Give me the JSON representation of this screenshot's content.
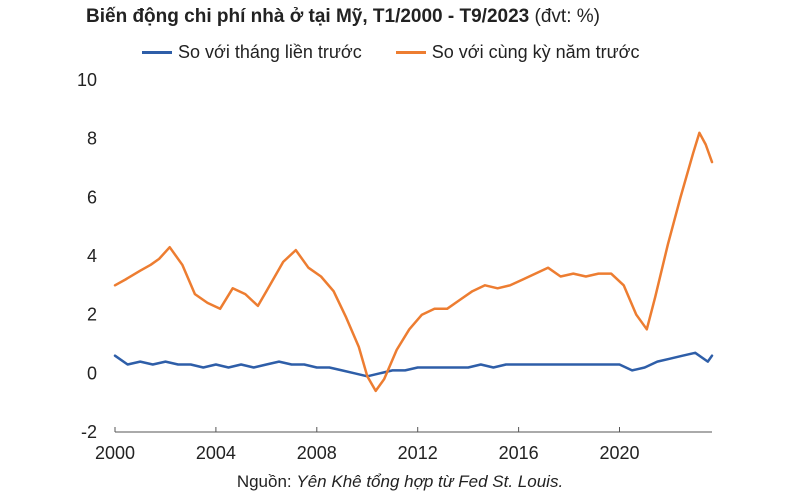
{
  "title": "Biến động chi phí nhà ở tại Mỹ, T1/2000 - T9/2023",
  "title_unit": "(đvt: %)",
  "source_prefix": "Nguồn:",
  "source_text": "Yên Khê tổng hợp từ Fed St. Louis.",
  "colors": {
    "series_mom": "#2e5ea8",
    "series_yoy": "#ed7d31",
    "axis": "#555555"
  },
  "chart_data": {
    "type": "line",
    "title": "Biến động chi phí nhà ở tại Mỹ, T1/2000 - T9/2023 (đvt: %)",
    "xlabel": "",
    "ylabel": "",
    "xlim": [
      "2000-01",
      "2023-09"
    ],
    "ylim": [
      -2,
      10
    ],
    "x_ticks": [
      "2000",
      "2004",
      "2008",
      "2012",
      "2016",
      "2020"
    ],
    "y_ticks": [
      "-2",
      "0",
      "2",
      "4",
      "6",
      "8",
      "10"
    ],
    "grid": false,
    "legend": "top",
    "series": [
      {
        "name": "So với tháng liền trước",
        "color": "#2e5ea8",
        "points": [
          [
            "2000-01",
            0.6
          ],
          [
            "2000-07",
            0.3
          ],
          [
            "2001-01",
            0.4
          ],
          [
            "2001-07",
            0.3
          ],
          [
            "2002-01",
            0.4
          ],
          [
            "2002-07",
            0.3
          ],
          [
            "2003-01",
            0.3
          ],
          [
            "2003-07",
            0.2
          ],
          [
            "2004-01",
            0.3
          ],
          [
            "2004-07",
            0.2
          ],
          [
            "2005-01",
            0.3
          ],
          [
            "2005-07",
            0.2
          ],
          [
            "2006-01",
            0.3
          ],
          [
            "2006-07",
            0.4
          ],
          [
            "2007-01",
            0.3
          ],
          [
            "2007-07",
            0.3
          ],
          [
            "2008-01",
            0.2
          ],
          [
            "2008-07",
            0.2
          ],
          [
            "2009-01",
            0.1
          ],
          [
            "2009-07",
            0.0
          ],
          [
            "2010-01",
            -0.1
          ],
          [
            "2010-07",
            0.0
          ],
          [
            "2011-01",
            0.1
          ],
          [
            "2011-07",
            0.1
          ],
          [
            "2012-01",
            0.2
          ],
          [
            "2012-07",
            0.2
          ],
          [
            "2013-01",
            0.2
          ],
          [
            "2013-07",
            0.2
          ],
          [
            "2014-01",
            0.2
          ],
          [
            "2014-07",
            0.3
          ],
          [
            "2015-01",
            0.2
          ],
          [
            "2015-07",
            0.3
          ],
          [
            "2016-01",
            0.3
          ],
          [
            "2016-07",
            0.3
          ],
          [
            "2017-01",
            0.3
          ],
          [
            "2017-07",
            0.3
          ],
          [
            "2018-01",
            0.3
          ],
          [
            "2018-07",
            0.3
          ],
          [
            "2019-01",
            0.3
          ],
          [
            "2019-07",
            0.3
          ],
          [
            "2020-01",
            0.3
          ],
          [
            "2020-07",
            0.1
          ],
          [
            "2021-01",
            0.2
          ],
          [
            "2021-07",
            0.4
          ],
          [
            "2022-01",
            0.5
          ],
          [
            "2022-07",
            0.6
          ],
          [
            "2023-01",
            0.7
          ],
          [
            "2023-07",
            0.4
          ],
          [
            "2023-09",
            0.6
          ]
        ]
      },
      {
        "name": "So với cùng kỳ năm trước",
        "color": "#ed7d31",
        "points": [
          [
            "2000-01",
            3.0
          ],
          [
            "2000-06",
            3.2
          ],
          [
            "2001-01",
            3.5
          ],
          [
            "2001-06",
            3.7
          ],
          [
            "2001-10",
            3.9
          ],
          [
            "2002-03",
            4.3
          ],
          [
            "2002-09",
            3.7
          ],
          [
            "2003-03",
            2.7
          ],
          [
            "2003-09",
            2.4
          ],
          [
            "2004-03",
            2.2
          ],
          [
            "2004-09",
            2.9
          ],
          [
            "2005-03",
            2.7
          ],
          [
            "2005-09",
            2.3
          ],
          [
            "2006-01",
            2.8
          ],
          [
            "2006-09",
            3.8
          ],
          [
            "2007-03",
            4.2
          ],
          [
            "2007-09",
            3.6
          ],
          [
            "2008-03",
            3.3
          ],
          [
            "2008-09",
            2.8
          ],
          [
            "2009-03",
            1.9
          ],
          [
            "2009-09",
            0.9
          ],
          [
            "2010-01",
            -0.1
          ],
          [
            "2010-05",
            -0.6
          ],
          [
            "2010-09",
            -0.2
          ],
          [
            "2011-03",
            0.8
          ],
          [
            "2011-09",
            1.5
          ],
          [
            "2012-03",
            2.0
          ],
          [
            "2012-09",
            2.2
          ],
          [
            "2013-03",
            2.2
          ],
          [
            "2013-09",
            2.5
          ],
          [
            "2014-03",
            2.8
          ],
          [
            "2014-09",
            3.0
          ],
          [
            "2015-03",
            2.9
          ],
          [
            "2015-09",
            3.0
          ],
          [
            "2016-03",
            3.2
          ],
          [
            "2016-09",
            3.4
          ],
          [
            "2017-03",
            3.6
          ],
          [
            "2017-09",
            3.3
          ],
          [
            "2018-03",
            3.4
          ],
          [
            "2018-09",
            3.3
          ],
          [
            "2019-03",
            3.4
          ],
          [
            "2019-09",
            3.4
          ],
          [
            "2020-03",
            3.0
          ],
          [
            "2020-09",
            2.0
          ],
          [
            "2021-02",
            1.5
          ],
          [
            "2021-06",
            2.6
          ],
          [
            "2021-12",
            4.4
          ],
          [
            "2022-06",
            6.0
          ],
          [
            "2022-12",
            7.5
          ],
          [
            "2023-03",
            8.2
          ],
          [
            "2023-06",
            7.8
          ],
          [
            "2023-09",
            7.2
          ]
        ]
      }
    ]
  }
}
